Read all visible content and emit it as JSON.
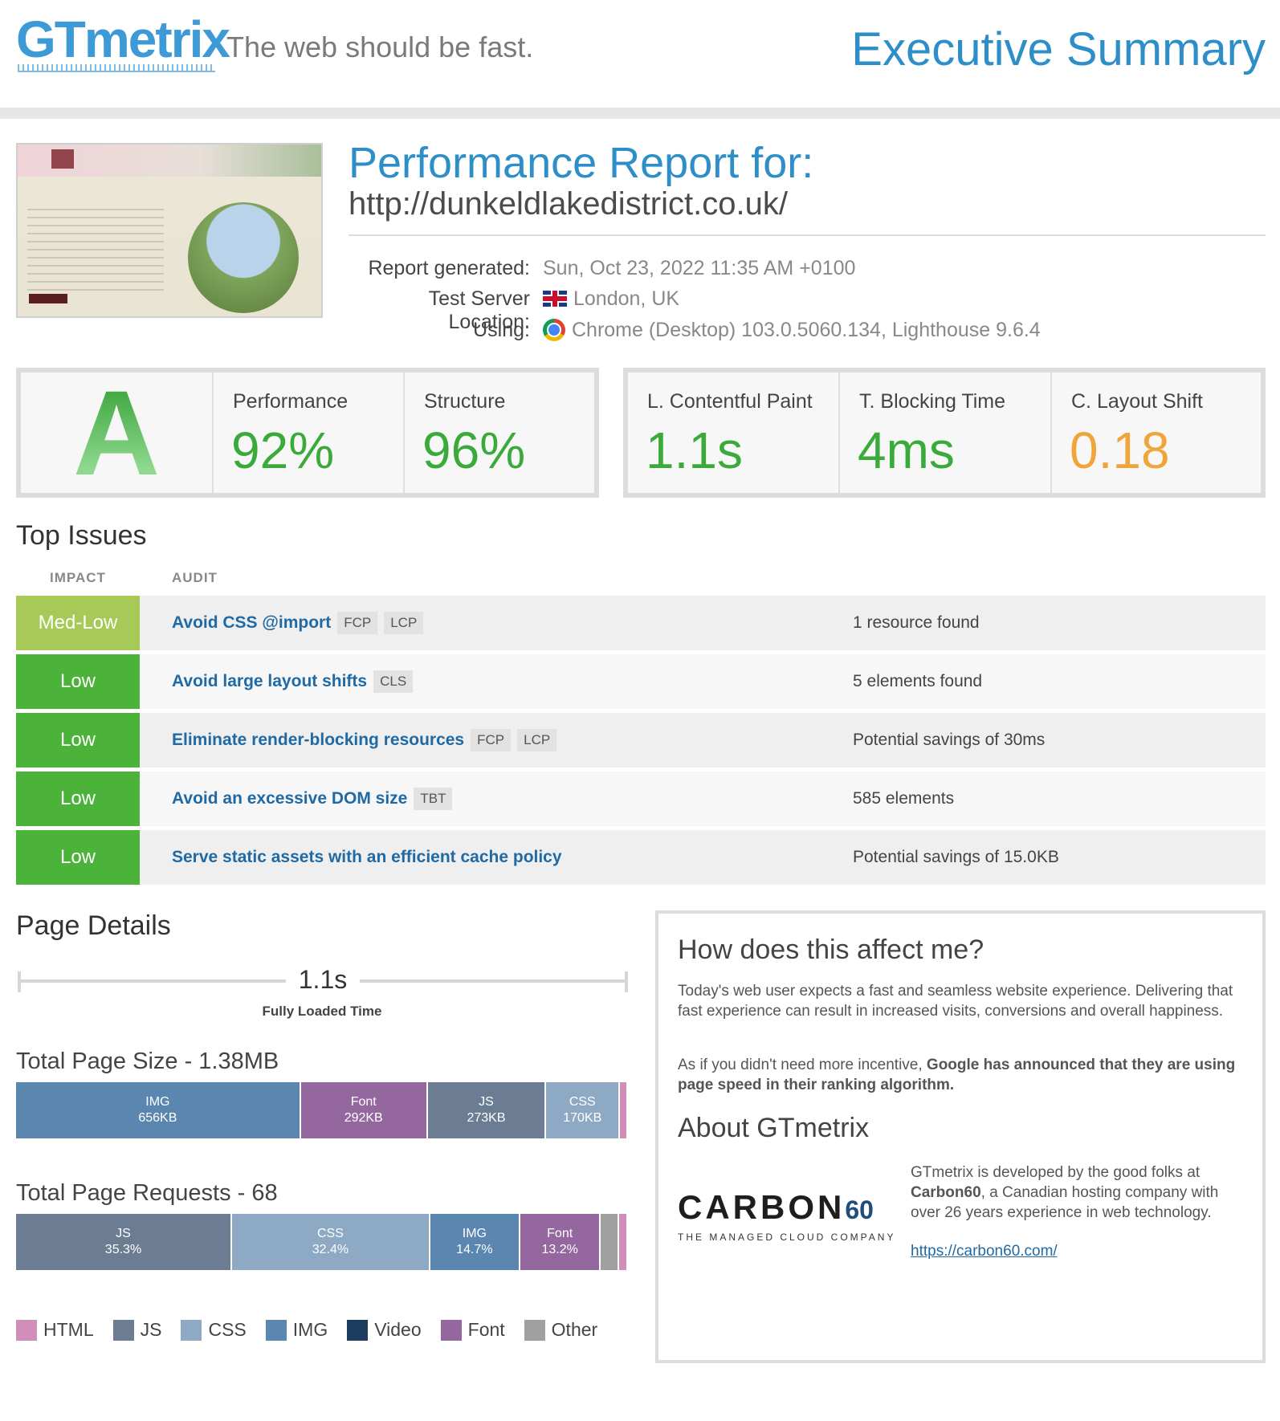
{
  "header": {
    "logo": "GTmetrix",
    "tagline": "The web should be fast.",
    "page_title": "Executive Summary"
  },
  "report": {
    "title": "Performance Report for:",
    "url": "http://dunkeldlakedistrict.co.uk/",
    "generated_label": "Report generated:",
    "generated_value": "Sun, Oct 23, 2022 11:35 AM +0100",
    "location_label": "Test Server Location:",
    "location_value": "London, UK",
    "using_label": "Using:",
    "using_value": "Chrome (Desktop) 103.0.5060.134, Lighthouse 9.6.4"
  },
  "scores": {
    "grade": "A",
    "performance_label": "Performance",
    "performance_value": "92%",
    "structure_label": "Structure",
    "structure_value": "96%"
  },
  "vitals": {
    "lcp_label": "L. Contentful Paint",
    "lcp_value": "1.1s",
    "tbt_label": "T. Blocking Time",
    "tbt_value": "4ms",
    "cls_label": "C. Layout Shift",
    "cls_value": "0.18"
  },
  "colors": {
    "green": "#3aab3a",
    "orange": "#efa53a",
    "med_low": "#a6c957",
    "low": "#4bb33a",
    "brand_blue": "#2d8ec8"
  },
  "top_issues": {
    "title": "Top Issues",
    "col_impact": "IMPACT",
    "col_audit": "AUDIT",
    "rows": [
      {
        "impact": "Med-Low",
        "audit": "Avoid CSS @import",
        "tags": [
          "FCP",
          "LCP"
        ],
        "result": "1 resource found"
      },
      {
        "impact": "Low",
        "audit": "Avoid large layout shifts",
        "tags": [
          "CLS"
        ],
        "result": "5 elements found"
      },
      {
        "impact": "Low",
        "audit": "Eliminate render-blocking resources",
        "tags": [
          "FCP",
          "LCP"
        ],
        "result": "Potential savings of 30ms"
      },
      {
        "impact": "Low",
        "audit": "Avoid an excessive DOM size",
        "tags": [
          "TBT"
        ],
        "result": "585 elements"
      },
      {
        "impact": "Low",
        "audit": "Serve static assets with an efficient cache policy",
        "tags": [],
        "result": "Potential savings of 15.0KB"
      }
    ]
  },
  "page_details": {
    "title": "Page Details",
    "fully_loaded_value": "1.1s",
    "fully_loaded_label": "Fully Loaded Time",
    "size_title": "Total Page Size - 1.38MB",
    "size_segments": [
      {
        "name": "IMG",
        "value": "656KB",
        "kb": 656,
        "color": "#5a86b0"
      },
      {
        "name": "Font",
        "value": "292KB",
        "kb": 292,
        "color": "#94689e"
      },
      {
        "name": "JS",
        "value": "273KB",
        "kb": 273,
        "color": "#6c7d93"
      },
      {
        "name": "CSS",
        "value": "170KB",
        "kb": 170,
        "color": "#8ea9c4"
      },
      {
        "name": "",
        "value": "",
        "kb": 18,
        "color": "#d08fb8"
      }
    ],
    "requests_title": "Total Page Requests - 68",
    "request_segments": [
      {
        "name": "JS",
        "value": "35.3%",
        "pct": 35.3,
        "color": "#6c7d93"
      },
      {
        "name": "CSS",
        "value": "32.4%",
        "pct": 32.4,
        "color": "#8ea9c4"
      },
      {
        "name": "IMG",
        "value": "14.7%",
        "pct": 14.7,
        "color": "#5a86b0"
      },
      {
        "name": "Font",
        "value": "13.2%",
        "pct": 13.2,
        "color": "#94689e"
      },
      {
        "name": "",
        "value": "",
        "pct": 3.0,
        "color": "#a0a0a0"
      },
      {
        "name": "",
        "value": "",
        "pct": 1.4,
        "color": "#d08fb8"
      }
    ],
    "legend": [
      {
        "label": "HTML",
        "color": "#d08fb8"
      },
      {
        "label": "JS",
        "color": "#6c7d93"
      },
      {
        "label": "CSS",
        "color": "#8ea9c4"
      },
      {
        "label": "IMG",
        "color": "#5a86b0"
      },
      {
        "label": "Video",
        "color": "#1c3d5e"
      },
      {
        "label": "Font",
        "color": "#94689e"
      },
      {
        "label": "Other",
        "color": "#a0a0a0"
      }
    ]
  },
  "sidebox": {
    "affect_title": "How does this affect me?",
    "affect_p1": "Today's web user expects a fast and seamless website experience. Delivering that fast experience can result in increased visits, conversions and overall happiness.",
    "affect_p2_start": "As if you didn't need more incentive, ",
    "affect_p2_bold": "Google has announced that they are using page speed in their ranking algorithm.",
    "about_title": "About GTmetrix",
    "carbon_word": "CARBON",
    "carbon_num": "60",
    "carbon_sub": "THE MANAGED CLOUD COMPANY",
    "about_p_start": "GTmetrix is developed by the good folks at ",
    "about_p_bold": "Carbon60",
    "about_p_end": ", a Canadian hosting company with over 26 years experience in web technology.",
    "link": "https://carbon60.com/"
  }
}
